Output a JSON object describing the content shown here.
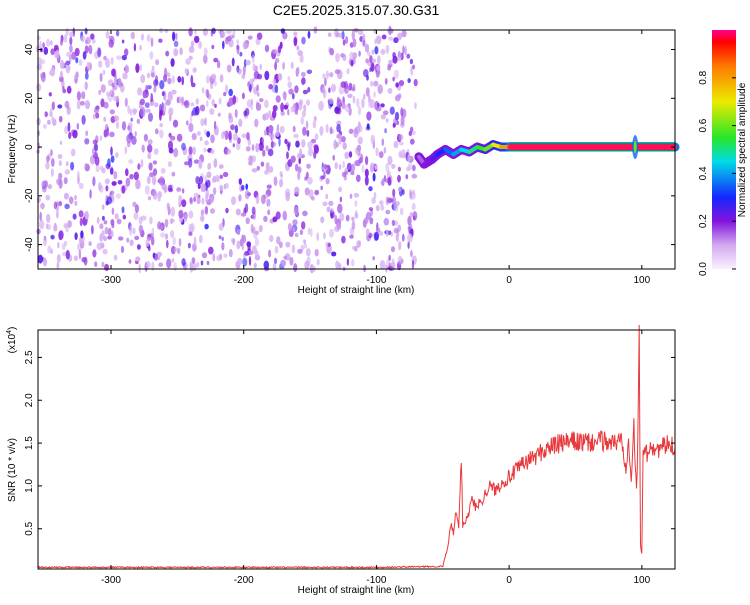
{
  "chart_data": [
    {
      "type": "heatmap",
      "title": "C2E5.2025.315.07.30.G31",
      "xlabel": "Height of straight line (km)",
      "ylabel": "Frequency (Hz)",
      "xlim": [
        -355,
        125
      ],
      "ylim": [
        -50,
        48
      ],
      "xticks": [
        -300,
        -200,
        -100,
        0,
        100
      ],
      "yticks": [
        -40,
        -20,
        0,
        20,
        40
      ],
      "colorbar": {
        "label": "Normalized spectral amplitude",
        "ticks": [
          "0.0",
          "0.2",
          "0.4",
          "0.6",
          "0.8"
        ],
        "range": [
          0,
          1
        ]
      },
      "noise_region": {
        "x_range": [
          -355,
          -70
        ],
        "y_range": [
          -50,
          48
        ],
        "level": [
          0.0,
          0.15
        ]
      },
      "signal_trace": [
        {
          "x": -68,
          "y": -4,
          "v": 0.15
        },
        {
          "x": -64,
          "y": -7,
          "v": 0.2
        },
        {
          "x": -58,
          "y": -5,
          "v": 0.25
        },
        {
          "x": -54,
          "y": -3,
          "v": 0.3
        },
        {
          "x": -48,
          "y": -1,
          "v": 0.35
        },
        {
          "x": -42,
          "y": -3,
          "v": 0.4
        },
        {
          "x": -36,
          "y": -1,
          "v": 0.45
        },
        {
          "x": -30,
          "y": -2,
          "v": 0.5
        },
        {
          "x": -24,
          "y": 0,
          "v": 0.55
        },
        {
          "x": -18,
          "y": -1,
          "v": 0.6
        },
        {
          "x": -12,
          "y": 1,
          "v": 0.7
        },
        {
          "x": -6,
          "y": 0,
          "v": 0.8
        },
        {
          "x": 0,
          "y": 0,
          "v": 0.9
        },
        {
          "x": 125,
          "y": 0,
          "v": 1.0
        }
      ],
      "marker_at_x": 95
    },
    {
      "type": "line",
      "xlabel": "Height of straight line (km)",
      "ylabel": "SNR (10 * v/v)",
      "yscale_label": "(x10",
      "yscale_exp": "4",
      "xlim": [
        -355,
        125
      ],
      "ylim": [
        0.03,
        2.82
      ],
      "xticks": [
        -300,
        -200,
        -100,
        0,
        100
      ],
      "yticks": [
        "0.5",
        "1.0",
        "1.5",
        "2.0",
        "2.5"
      ],
      "line_color": "#e8383b",
      "series": [
        {
          "x": [
            -355,
            -200,
            -100,
            -50,
            -46,
            -44,
            -42,
            -40,
            -38,
            -36,
            -35,
            -33,
            -30,
            -28,
            -25,
            -20,
            -15,
            -10,
            -5,
            0,
            10,
            20,
            30,
            40,
            50,
            60,
            70,
            80,
            85,
            88,
            90,
            92,
            94,
            96,
            97,
            98,
            99,
            100,
            101,
            102,
            104,
            106,
            110,
            115,
            120,
            125
          ],
          "y": [
            0.05,
            0.05,
            0.05,
            0.06,
            0.3,
            0.55,
            0.45,
            0.7,
            0.5,
            1.35,
            0.55,
            0.6,
            0.7,
            0.85,
            0.75,
            0.85,
            1.0,
            0.95,
            1.05,
            1.1,
            1.25,
            1.35,
            1.45,
            1.5,
            1.52,
            1.5,
            1.53,
            1.5,
            1.55,
            1.2,
            1.6,
            1.1,
            1.7,
            0.9,
            1.5,
            2.82,
            0.3,
            0.22,
            1.4,
            1.45,
            1.35,
            1.5,
            1.42,
            1.45,
            1.48,
            1.45
          ]
        }
      ]
    }
  ]
}
